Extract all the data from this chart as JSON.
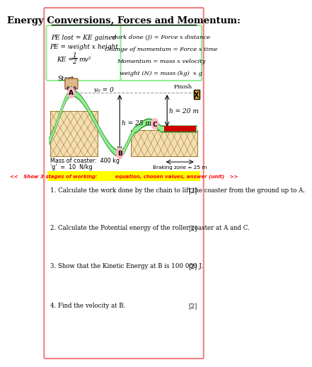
{
  "title": "Energy Conversions, Forces and Momentum:",
  "box1_line1": "PE lost = KE gained",
  "box1_line2": "PE = weight x height",
  "box2_lines": [
    "work done (J) = Force x distance",
    "Change of momentum = Force x time",
    "Momentum = mass x velocity",
    "weight (N) = mass (kg)  x g"
  ],
  "coaster_label": "Start",
  "v0_label": "v₀ = 0",
  "h25_label": "h = 25 m",
  "h20_label": "h = 20 m",
  "finish_label": "Finish",
  "mass_label": "Mass of coaster:  400 kg",
  "g_label": "'g'  =  10  N/kg",
  "braking_label": "Braking zone = 25 m",
  "yellow_banner": "<<   Show 3 stages of working:          equation, chosen values, answer (unit)   >>",
  "questions": [
    {
      "num": "1.",
      "text": "Calculate the work done by the chain to lift the coaster from the ground up to A.",
      "marks": "[2]"
    },
    {
      "num": "2.",
      "text": "Calculate the Potential energy of the roller coaster at A and C.",
      "marks": "[2]"
    },
    {
      "num": "3.",
      "text": "Show that the Kinetic Energy at B is 100 000 J.",
      "marks": "[2]"
    },
    {
      "num": "4.",
      "text": "Find the velocity at B.",
      "marks": "[2]"
    }
  ],
  "bg_color": "#ffffff",
  "border_color": "#f08080",
  "box_border_color": "#90ee90",
  "title_color": "#000000",
  "banner_bg": "#ffff00",
  "banner_text_color": "#ff0000",
  "support_fill": "#F5DEB3",
  "support_border": "#8B6914",
  "track_outer": "#228B22",
  "track_inner": "#90EE90",
  "red_strip": "#cc0000",
  "point_circle": "#FFB6C1",
  "coaster_fill": "#DEB887",
  "coaster_border": "#8B4513"
}
